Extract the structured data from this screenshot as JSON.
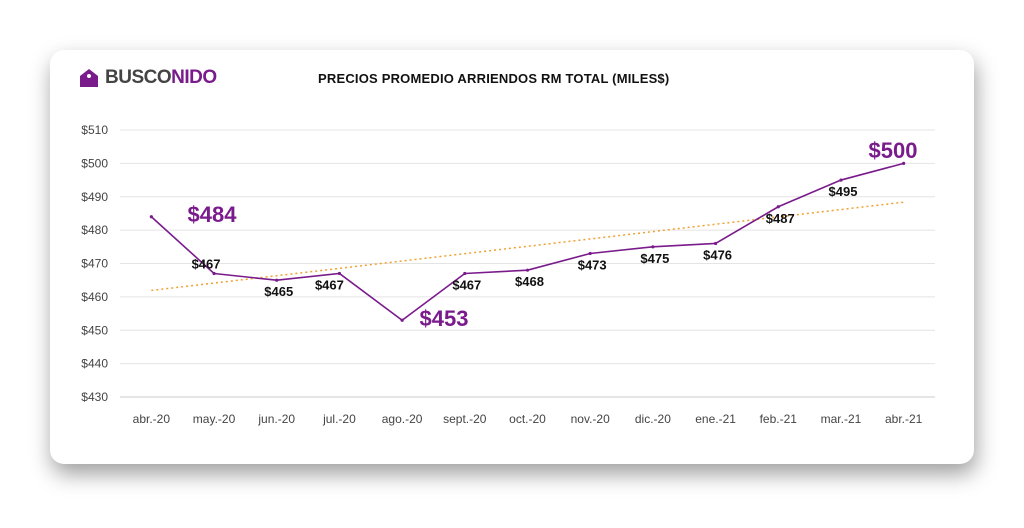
{
  "brand": {
    "name_part1": "BUSCO",
    "name_part2": "NIDO"
  },
  "colors": {
    "brand_purple": "#7a1b8c",
    "line": "#7a1b8c",
    "trendline": "#f0a030",
    "axis_text": "#444444",
    "grid": "#e4e4e4"
  },
  "chart_data": {
    "type": "line",
    "title": "PRECIOS PROMEDIO ARRIENDOS RM TOTAL (MILES$)",
    "xlabel": "",
    "ylabel": "",
    "ylim": [
      430,
      510
    ],
    "ytick_step": 10,
    "yticks": [
      "$430",
      "$440",
      "$450",
      "$460",
      "$470",
      "$480",
      "$490",
      "$500",
      "$510"
    ],
    "grid": true,
    "legend": "none",
    "categories": [
      "abr.-20",
      "may.-20",
      "jun.-20",
      "jul.-20",
      "ago.-20",
      "sept.-20",
      "oct.-20",
      "nov.-20",
      "dic.-20",
      "ene.-21",
      "feb.-21",
      "mar.-21",
      "abr.-21"
    ],
    "series": [
      {
        "values": [
          484,
          467,
          465,
          467,
          453,
          467,
          468,
          473,
          475,
          476,
          487,
          495,
          500
        ],
        "labels": [
          "$484",
          "$467",
          "$465",
          "$467",
          "$453",
          "$467",
          "$468",
          "$473",
          "$475",
          "$476",
          "$487",
          "$495",
          "$500"
        ],
        "highlighted_labels": [
          0,
          4,
          12
        ]
      }
    ],
    "trendline": {
      "type": "linear",
      "style": "dotted"
    }
  }
}
